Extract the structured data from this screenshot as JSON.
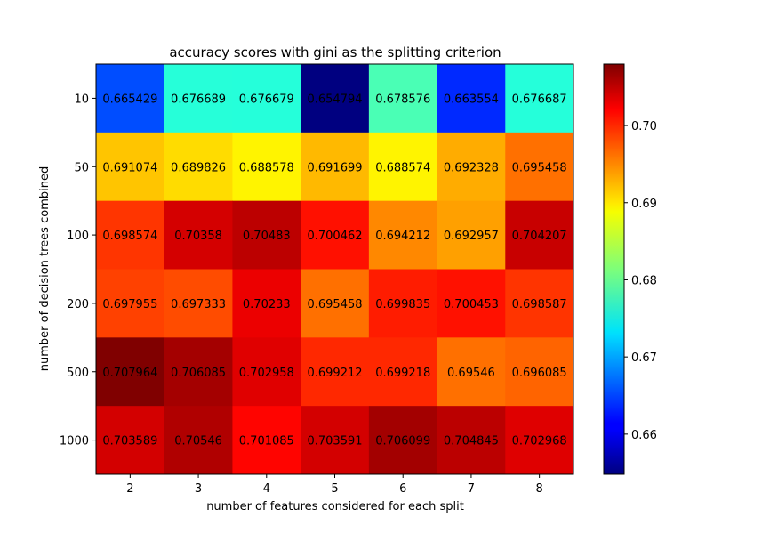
{
  "chart_data": {
    "type": "heatmap",
    "title": "accuracy scores with gini as the splitting criterion",
    "xlabel": "number of features considered for each split",
    "ylabel": "number of decision trees combined",
    "x": [
      "2",
      "3",
      "4",
      "5",
      "6",
      "7",
      "8"
    ],
    "y": [
      "10",
      "50",
      "100",
      "200",
      "500",
      "1000"
    ],
    "values": [
      [
        0.665429,
        0.676689,
        0.676679,
        0.654794,
        0.678576,
        0.663554,
        0.676687
      ],
      [
        0.691074,
        0.689826,
        0.688578,
        0.691699,
        0.688574,
        0.692328,
        0.695458
      ],
      [
        0.698574,
        0.70358,
        0.70483,
        0.700462,
        0.694212,
        0.692957,
        0.704207
      ],
      [
        0.697955,
        0.697333,
        0.70233,
        0.695458,
        0.699835,
        0.700453,
        0.698587
      ],
      [
        0.707964,
        0.706085,
        0.702958,
        0.699212,
        0.699218,
        0.69546,
        0.696085
      ],
      [
        0.703589,
        0.70546,
        0.701085,
        0.703591,
        0.706099,
        0.704845,
        0.702968
      ]
    ],
    "value_labels": [
      [
        "0.665429",
        "0.676689",
        "0.676679",
        "0.654794",
        "0.678576",
        "0.663554",
        "0.676687"
      ],
      [
        "0.691074",
        "0.689826",
        "0.688578",
        "0.691699",
        "0.688574",
        "0.692328",
        "0.695458"
      ],
      [
        "0.698574",
        "0.70358",
        "0.70483",
        "0.700462",
        "0.694212",
        "0.692957",
        "0.704207"
      ],
      [
        "0.697955",
        "0.697333",
        "0.70233",
        "0.695458",
        "0.699835",
        "0.700453",
        "0.698587"
      ],
      [
        "0.707964",
        "0.706085",
        "0.702958",
        "0.699212",
        "0.699218",
        "0.69546",
        "0.696085"
      ],
      [
        "0.703589",
        "0.70546",
        "0.701085",
        "0.703591",
        "0.706099",
        "0.704845",
        "0.702968"
      ]
    ],
    "colormap": "jet",
    "vmin": 0.654794,
    "vmax": 0.707964,
    "colorbar_ticks": [
      0.66,
      0.67,
      0.68,
      0.69,
      0.7
    ],
    "colorbar_tick_labels": [
      "0.66",
      "0.67",
      "0.68",
      "0.69",
      "0.70"
    ]
  }
}
